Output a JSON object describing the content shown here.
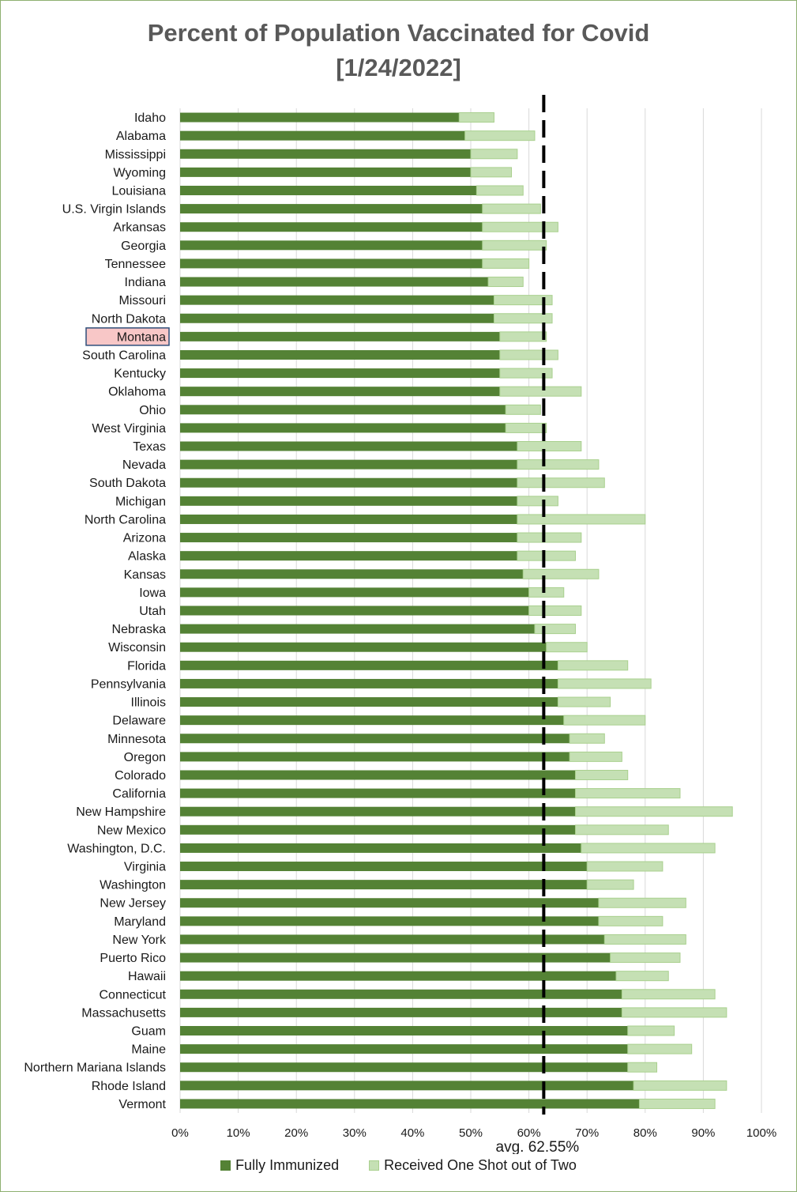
{
  "chart_data": {
    "type": "bar",
    "orientation": "horizontal",
    "stacked": true,
    "title": "Percent of Population Vaccinated for Covid",
    "subtitle": "[1/24/2022]",
    "categories": [
      "Idaho",
      "Alabama",
      "Mississippi",
      "Wyoming",
      "Louisiana",
      "U.S. Virgin Islands",
      "Arkansas",
      "Georgia",
      "Tennessee",
      "Indiana",
      "Missouri",
      "North Dakota",
      "Montana",
      "South Carolina",
      "Kentucky",
      "Oklahoma",
      "Ohio",
      "West Virginia",
      "Texas",
      "Nevada",
      "South Dakota",
      "Michigan",
      "North Carolina",
      "Arizona",
      "Alaska",
      "Kansas",
      "Iowa",
      "Utah",
      "Nebraska",
      "Wisconsin",
      "Florida",
      "Pennsylvania",
      "Illinois",
      "Delaware",
      "Minnesota",
      "Oregon",
      "Colorado",
      "California",
      "New Hampshire",
      "New Mexico",
      "Washington, D.C.",
      "Virginia",
      "Washington",
      "New Jersey",
      "Maryland",
      "New York",
      "Puerto Rico",
      "Hawaii",
      "Connecticut",
      "Massachusetts",
      "Guam",
      "Maine",
      "Northern Mariana Islands",
      "Rhode Island",
      "Vermont"
    ],
    "highlighted_category": "Montana",
    "series": [
      {
        "name": "Fully Immunized",
        "color": "#548235",
        "values": [
          48,
          49,
          50,
          50,
          51,
          52,
          52,
          52,
          52,
          53,
          54,
          54,
          55,
          55,
          55,
          55,
          56,
          56,
          58,
          58,
          58,
          58,
          58,
          58,
          58,
          59,
          60,
          60,
          61,
          63,
          65,
          65,
          65,
          66,
          67,
          67,
          68,
          68,
          68,
          68,
          69,
          70,
          70,
          72,
          72,
          73,
          74,
          75,
          76,
          76,
          77,
          77,
          77,
          78,
          79
        ]
      },
      {
        "name": "Received One Shot out of Two",
        "color": "#c5e0b4",
        "values": [
          6,
          12,
          8,
          7,
          8,
          10,
          13,
          11,
          8,
          6,
          10,
          10,
          8,
          10,
          9,
          14,
          6,
          7,
          11,
          14,
          15,
          7,
          22,
          11,
          10,
          13,
          6,
          9,
          7,
          7,
          12,
          16,
          9,
          14,
          6,
          9,
          9,
          18,
          27,
          16,
          23,
          13,
          8,
          15,
          11,
          14,
          12,
          9,
          16,
          18,
          8,
          11,
          5,
          16,
          13
        ]
      }
    ],
    "xlim": [
      0,
      100
    ],
    "x_ticks": [
      "0%",
      "10%",
      "20%",
      "30%",
      "40%",
      "50%",
      "60%",
      "70%",
      "80%",
      "90%",
      "100%"
    ],
    "reference_line": {
      "value": 62.55,
      "label": "avg. 62.55%",
      "style": "dashed",
      "color": "#000000"
    },
    "grid": "vertical",
    "legend_position": "bottom"
  }
}
